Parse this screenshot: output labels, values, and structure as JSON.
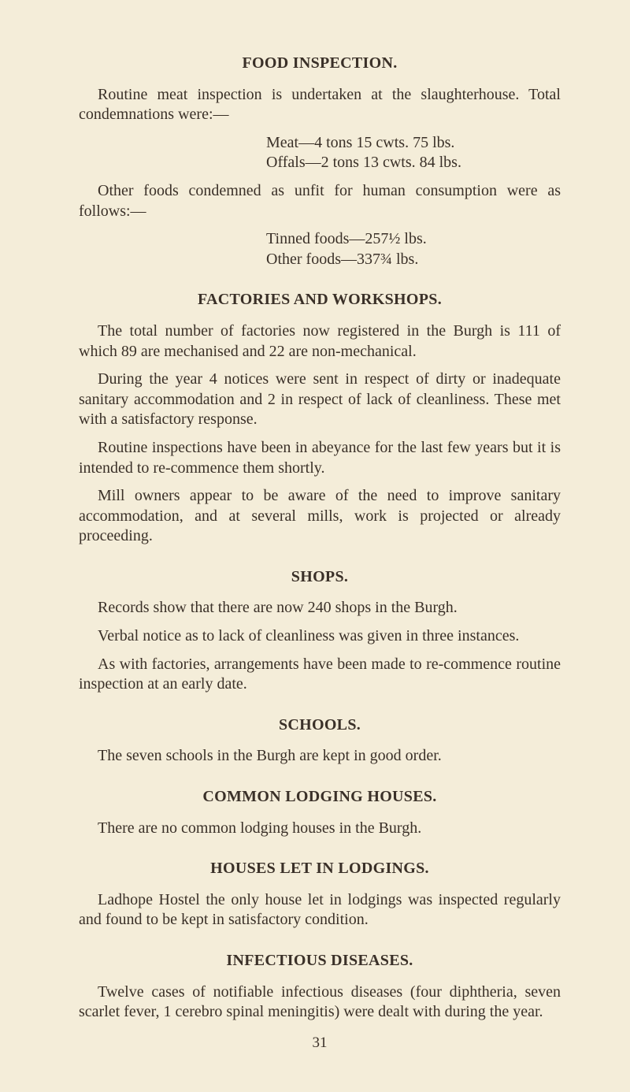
{
  "colors": {
    "background": "#f4edd9",
    "text": "#3a3028"
  },
  "typography": {
    "font_family": "Times New Roman, serif",
    "body_fontsize_pt": 15,
    "heading_fontsize_pt": 15,
    "heading_weight": "bold",
    "line_height": 1.28
  },
  "sections": {
    "food_inspection": {
      "title": "FOOD INSPECTION.",
      "p1": "Routine meat inspection is undertaken at the slaughterhouse. Total condemnations were:—",
      "list1_line1": "Meat—4 tons 15 cwts. 75 lbs.",
      "list1_line2": "Offals—2 tons 13 cwts. 84 lbs.",
      "p2": "Other foods condemned as unfit for human consumption were as follows:—",
      "list2_line1": "Tinned foods—257½ lbs.",
      "list2_line2": "Other  foods—337¾  lbs."
    },
    "factories": {
      "title": "FACTORIES AND WORKSHOPS.",
      "p1": "The total number of factories now registered in the Burgh is 111 of which 89 are mechanised and 22 are non-mechanical.",
      "p2": "During the year 4 notices were sent in respect of dirty or inadequate sanitary accommodation and 2 in respect of lack of cleanliness. These met with a satisfactory response.",
      "p3": "Routine inspections have been in abeyance for the last few years but it is intended to re-commence them shortly.",
      "p4": "Mill owners appear to be aware of the need to improve sanitary accommodation, and at several mills, work is projected or already proceeding."
    },
    "shops": {
      "title": "SHOPS.",
      "p1": "Records show that there are now 240 shops in the Burgh.",
      "p2": "Verbal notice as to lack of cleanliness was given in three instances.",
      "p3": "As with factories, arrangements have been made to re-commence routine inspection at an early date."
    },
    "schools": {
      "title": "SCHOOLS.",
      "p1": "The seven schools in the Burgh are kept in good order."
    },
    "lodging": {
      "title": "COMMON  LODGING  HOUSES.",
      "p1": "There are no common lodging houses in the Burgh."
    },
    "houses_let": {
      "title": "HOUSES LET IN LODGINGS.",
      "p1": "Ladhope Hostel the only house let in lodgings was inspected regularly and found to be kept in satisfactory condition."
    },
    "infectious": {
      "title": "INFECTIOUS DISEASES.",
      "p1": "Twelve cases of notifiable infectious diseases (four diphtheria, seven scarlet fever, 1 cerebro spinal meningitis) were dealt with during the year."
    }
  },
  "page_number": "31"
}
